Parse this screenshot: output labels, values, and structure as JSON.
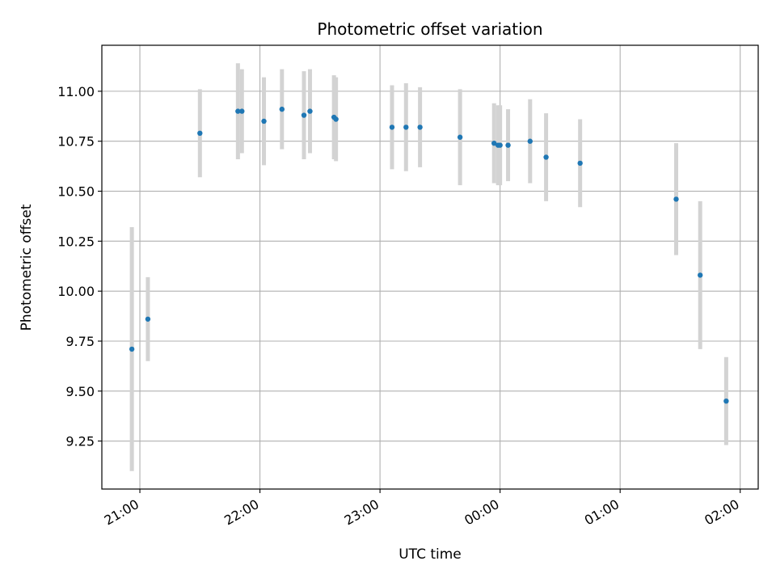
{
  "chart_data": {
    "type": "scatter",
    "title": "Photometric offset variation",
    "xlabel": "UTC time",
    "ylabel": "Photometric offset",
    "grid": true,
    "xlim": [
      "20:41",
      "02:09"
    ],
    "ylim": [
      9.01,
      11.23
    ],
    "x_ticks": [
      "21:00",
      "22:00",
      "23:00",
      "00:00",
      "01:00",
      "02:00"
    ],
    "y_ticks": [
      "9.25",
      "9.50",
      "9.75",
      "10.00",
      "10.25",
      "10.50",
      "10.75",
      "11.00"
    ],
    "colors": {
      "points": "#1f77b4",
      "errorbars": "#d3d3d3",
      "grid": "#b0b0b0"
    },
    "points": [
      {
        "x": "20:56",
        "y": 9.71,
        "err": 0.61
      },
      {
        "x": "21:04",
        "y": 9.86,
        "err": 0.21
      },
      {
        "x": "21:30",
        "y": 10.79,
        "err": 0.22
      },
      {
        "x": "21:49",
        "y": 10.9,
        "err": 0.24
      },
      {
        "x": "21:51",
        "y": 10.9,
        "err": 0.21
      },
      {
        "x": "22:02",
        "y": 10.85,
        "err": 0.22
      },
      {
        "x": "22:11",
        "y": 10.91,
        "err": 0.2
      },
      {
        "x": "22:22",
        "y": 10.88,
        "err": 0.22
      },
      {
        "x": "22:25",
        "y": 10.9,
        "err": 0.21
      },
      {
        "x": "22:37",
        "y": 10.87,
        "err": 0.21
      },
      {
        "x": "22:38",
        "y": 10.86,
        "err": 0.21
      },
      {
        "x": "23:06",
        "y": 10.82,
        "err": 0.21
      },
      {
        "x": "23:13",
        "y": 10.82,
        "err": 0.22
      },
      {
        "x": "23:20",
        "y": 10.82,
        "err": 0.2
      },
      {
        "x": "23:40",
        "y": 10.77,
        "err": 0.24
      },
      {
        "x": "23:57",
        "y": 10.74,
        "err": 0.2
      },
      {
        "x": "23:59",
        "y": 10.73,
        "err": 0.2
      },
      {
        "x": "00:00",
        "y": 10.73,
        "err": 0.2
      },
      {
        "x": "00:04",
        "y": 10.73,
        "err": 0.18
      },
      {
        "x": "00:15",
        "y": 10.75,
        "err": 0.21
      },
      {
        "x": "00:23",
        "y": 10.67,
        "err": 0.22
      },
      {
        "x": "00:40",
        "y": 10.64,
        "err": 0.22
      },
      {
        "x": "01:28",
        "y": 10.46,
        "err": 0.28
      },
      {
        "x": "01:40",
        "y": 10.08,
        "err": 0.37
      },
      {
        "x": "01:53",
        "y": 9.45,
        "err": 0.22
      }
    ]
  }
}
